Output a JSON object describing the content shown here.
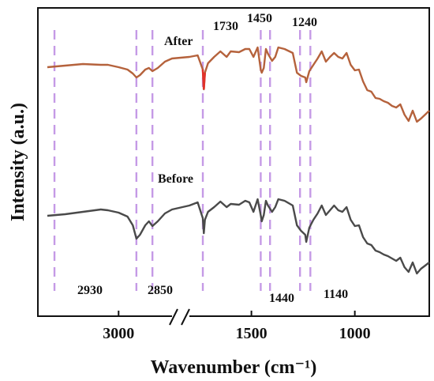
{
  "chart_data": {
    "type": "line",
    "title": "",
    "xlabel": "Wavenumber (cm⁻¹)",
    "ylabel": "Intensity (a.u.)",
    "x_axis": {
      "reversed": true,
      "broken": true,
      "break_between": [
        2850,
        1800
      ],
      "ticks": [
        3000,
        1500,
        1000
      ],
      "tick_labels": [
        "3000",
        "1500",
        "1000"
      ]
    },
    "y_axis": {
      "ticks_shown": false
    },
    "grid": false,
    "legend": "none",
    "series": [
      {
        "name": "After",
        "color": "#b5623c",
        "points": [
          [
            3200,
            75
          ],
          [
            3150,
            73
          ],
          [
            3100,
            71
          ],
          [
            3050,
            72
          ],
          [
            3030,
            72
          ],
          [
            3000,
            75
          ],
          [
            2975,
            78
          ],
          [
            2960,
            83
          ],
          [
            2950,
            88
          ],
          [
            2940,
            85
          ],
          [
            2925,
            78
          ],
          [
            2915,
            76
          ],
          [
            2905,
            80
          ],
          [
            2890,
            76
          ],
          [
            2870,
            68
          ],
          [
            2850,
            64
          ],
          [
            1800,
            62
          ],
          [
            1760,
            60
          ],
          [
            1735,
            78
          ],
          [
            1730,
            103
          ],
          [
            1725,
            82
          ],
          [
            1710,
            70
          ],
          [
            1680,
            62
          ],
          [
            1650,
            55
          ],
          [
            1620,
            62
          ],
          [
            1600,
            55
          ],
          [
            1560,
            56
          ],
          [
            1530,
            52
          ],
          [
            1510,
            52
          ],
          [
            1490,
            62
          ],
          [
            1470,
            50
          ],
          [
            1455,
            78
          ],
          [
            1450,
            82
          ],
          [
            1440,
            76
          ],
          [
            1430,
            52
          ],
          [
            1420,
            58
          ],
          [
            1400,
            67
          ],
          [
            1385,
            62
          ],
          [
            1370,
            50
          ],
          [
            1340,
            52
          ],
          [
            1300,
            57
          ],
          [
            1280,
            82
          ],
          [
            1260,
            86
          ],
          [
            1240,
            88
          ],
          [
            1235,
            94
          ],
          [
            1220,
            80
          ],
          [
            1200,
            72
          ],
          [
            1180,
            64
          ],
          [
            1160,
            55
          ],
          [
            1140,
            68
          ],
          [
            1120,
            62
          ],
          [
            1100,
            57
          ],
          [
            1080,
            62
          ],
          [
            1060,
            64
          ],
          [
            1040,
            57
          ],
          [
            1020,
            72
          ],
          [
            1000,
            79
          ],
          [
            980,
            78
          ],
          [
            960,
            93
          ],
          [
            940,
            104
          ],
          [
            920,
            106
          ],
          [
            900,
            114
          ],
          [
            880,
            115
          ],
          [
            860,
            118
          ],
          [
            840,
            120
          ],
          [
            820,
            124
          ],
          [
            800,
            126
          ],
          [
            780,
            122
          ],
          [
            760,
            135
          ],
          [
            740,
            143
          ],
          [
            720,
            130
          ],
          [
            700,
            144
          ],
          [
            680,
            140
          ],
          [
            660,
            135
          ],
          [
            640,
            130
          ]
        ]
      },
      {
        "name": "Before",
        "color": "#4a4a4a",
        "points": [
          [
            3200,
            263
          ],
          [
            3150,
            261
          ],
          [
            3100,
            258
          ],
          [
            3050,
            255
          ],
          [
            3030,
            256
          ],
          [
            3000,
            259
          ],
          [
            2975,
            264
          ],
          [
            2960,
            275
          ],
          [
            2950,
            292
          ],
          [
            2940,
            287
          ],
          [
            2925,
            275
          ],
          [
            2915,
            270
          ],
          [
            2905,
            276
          ],
          [
            2890,
            270
          ],
          [
            2870,
            260
          ],
          [
            2850,
            255
          ],
          [
            1800,
            250
          ],
          [
            1760,
            246
          ],
          [
            1735,
            266
          ],
          [
            1730,
            285
          ],
          [
            1725,
            268
          ],
          [
            1710,
            258
          ],
          [
            1680,
            252
          ],
          [
            1650,
            245
          ],
          [
            1620,
            252
          ],
          [
            1600,
            248
          ],
          [
            1560,
            249
          ],
          [
            1530,
            244
          ],
          [
            1510,
            246
          ],
          [
            1490,
            258
          ],
          [
            1470,
            242
          ],
          [
            1455,
            262
          ],
          [
            1450,
            270
          ],
          [
            1440,
            262
          ],
          [
            1430,
            244
          ],
          [
            1420,
            250
          ],
          [
            1400,
            258
          ],
          [
            1385,
            252
          ],
          [
            1370,
            242
          ],
          [
            1340,
            244
          ],
          [
            1300,
            250
          ],
          [
            1280,
            275
          ],
          [
            1260,
            282
          ],
          [
            1240,
            287
          ],
          [
            1235,
            296
          ],
          [
            1220,
            278
          ],
          [
            1200,
            268
          ],
          [
            1180,
            260
          ],
          [
            1160,
            250
          ],
          [
            1140,
            262
          ],
          [
            1120,
            256
          ],
          [
            1100,
            250
          ],
          [
            1080,
            256
          ],
          [
            1060,
            258
          ],
          [
            1040,
            252
          ],
          [
            1020,
            268
          ],
          [
            1000,
            276
          ],
          [
            980,
            275
          ],
          [
            960,
            290
          ],
          [
            940,
            298
          ],
          [
            920,
            300
          ],
          [
            900,
            307
          ],
          [
            880,
            309
          ],
          [
            860,
            312
          ],
          [
            840,
            314
          ],
          [
            820,
            317
          ],
          [
            800,
            320
          ],
          [
            780,
            316
          ],
          [
            760,
            328
          ],
          [
            740,
            334
          ],
          [
            720,
            322
          ],
          [
            700,
            336
          ],
          [
            680,
            330
          ],
          [
            660,
            326
          ],
          [
            640,
            322
          ]
        ]
      }
    ],
    "series_labels": [
      "After",
      "Before"
    ],
    "annotations": [
      "1730",
      "1450",
      "1240",
      "2930",
      "2850",
      "1440",
      "1140"
    ]
  }
}
